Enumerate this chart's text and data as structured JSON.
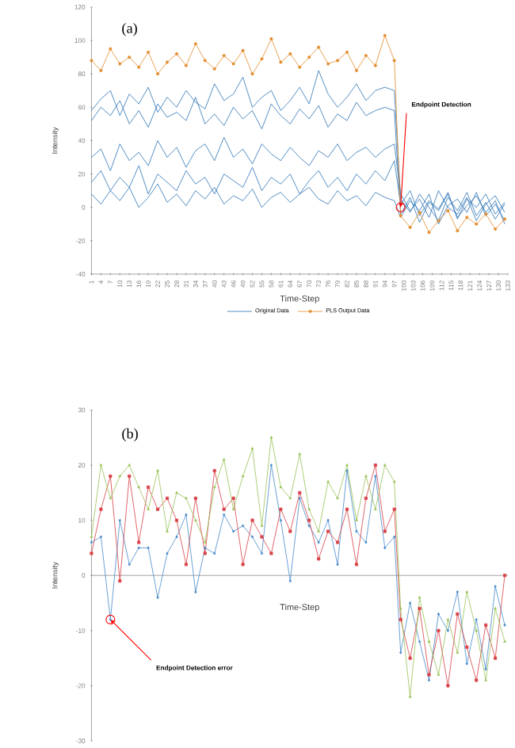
{
  "chart_data": [
    {
      "type": "line",
      "xlabel": "Time-Step",
      "ylabel": "Intensity",
      "legend": "bottom",
      "x": [
        1,
        4,
        7,
        10,
        13,
        16,
        19,
        22,
        25,
        28,
        31,
        34,
        37,
        40,
        43,
        46,
        49,
        52,
        55,
        58,
        61,
        64,
        67,
        70,
        73,
        76,
        79,
        82,
        85,
        88,
        91,
        94,
        97,
        99,
        102,
        105,
        108,
        111,
        114,
        117,
        120,
        123,
        126,
        129,
        132
      ],
      "xlim": [
        1,
        133
      ],
      "ylim": [
        -40,
        120
      ],
      "yticks": [
        -40,
        -20,
        0,
        20,
        40,
        60,
        80,
        100,
        120
      ],
      "xticks": [
        1,
        4,
        7,
        10,
        13,
        16,
        19,
        22,
        25,
        28,
        31,
        34,
        37,
        40,
        43,
        46,
        49,
        52,
        55,
        58,
        61,
        64,
        67,
        70,
        73,
        76,
        79,
        82,
        85,
        88,
        91,
        94,
        97,
        100,
        103,
        106,
        109,
        112,
        115,
        118,
        121,
        124,
        127,
        130,
        133
      ],
      "annotations": [
        "(a)",
        {
          "text": "Endpoint Detection",
          "x": 99,
          "y": 0
        }
      ],
      "series": [
        {
          "name": "Original Data",
          "color": "#2e75b6",
          "values": [
            58,
            65,
            70,
            55,
            68,
            62,
            72,
            57,
            66,
            60,
            70,
            63,
            59,
            74,
            64,
            68,
            78,
            60,
            66,
            70,
            58,
            64,
            72,
            62,
            82,
            68,
            60,
            66,
            74,
            64,
            70,
            72,
            70,
            5,
            -3,
            8,
            0,
            -8,
            6,
            -2,
            9,
            -5,
            3,
            -7,
            2
          ]
        },
        {
          "color": "#2e75b6",
          "values": [
            52,
            60,
            55,
            64,
            50,
            58,
            48,
            62,
            54,
            57,
            52,
            66,
            50,
            56,
            49,
            60,
            53,
            58,
            47,
            62,
            55,
            50,
            59,
            53,
            61,
            48,
            56,
            52,
            63,
            55,
            58,
            60,
            58,
            -4,
            6,
            -9,
            3,
            -2,
            8,
            -6,
            1,
            7,
            -3,
            4,
            -10
          ]
        },
        {
          "color": "#2e75b6",
          "values": [
            30,
            35,
            22,
            38,
            28,
            33,
            25,
            40,
            30,
            36,
            24,
            34,
            38,
            28,
            42,
            30,
            35,
            26,
            38,
            32,
            28,
            36,
            30,
            25,
            34,
            30,
            38,
            28,
            33,
            36,
            30,
            35,
            38,
            8,
            -2,
            5,
            -6,
            10,
            0,
            -4,
            6,
            -8,
            2,
            7,
            -3
          ]
        },
        {
          "color": "#2e75b6",
          "values": [
            15,
            22,
            10,
            18,
            12,
            25,
            8,
            20,
            15,
            10,
            22,
            14,
            18,
            8,
            20,
            16,
            12,
            24,
            10,
            18,
            14,
            20,
            8,
            16,
            22,
            12,
            18,
            10,
            20,
            14,
            22,
            16,
            28,
            2,
            10,
            -5,
            4,
            -1,
            9,
            -7,
            5,
            0,
            8,
            -4,
            3
          ]
        },
        {
          "color": "#2e75b6",
          "values": [
            8,
            2,
            10,
            4,
            12,
            0,
            6,
            14,
            3,
            8,
            1,
            10,
            5,
            12,
            2,
            7,
            4,
            11,
            0,
            6,
            9,
            3,
            8,
            12,
            5,
            2,
            10,
            4,
            7,
            1,
            9,
            6,
            4,
            -6,
            4,
            -2,
            8,
            -10,
            1,
            5,
            -3,
            9,
            -5,
            2,
            -8
          ]
        },
        {
          "name": "PLS Output Data",
          "color": "#e38d2f",
          "marker": "circle",
          "values": [
            88,
            82,
            95,
            86,
            90,
            84,
            93,
            80,
            87,
            92,
            85,
            98,
            88,
            83,
            91,
            86,
            94,
            80,
            89,
            101,
            87,
            92,
            84,
            90,
            96,
            86,
            88,
            93,
            82,
            91,
            85,
            103,
            88,
            -5,
            -12,
            -3,
            -15,
            -8,
            -2,
            -14,
            -6,
            -10,
            -4,
            -13,
            -7
          ]
        }
      ]
    },
    {
      "type": "line",
      "xlabel": "Time-Step",
      "ylabel": "Intensity",
      "tick_labels": "y",
      "x": [
        1,
        4,
        7,
        10,
        13,
        16,
        19,
        22,
        25,
        28,
        31,
        34,
        37,
        40,
        43,
        46,
        49,
        52,
        55,
        58,
        61,
        64,
        67,
        70,
        73,
        76,
        79,
        82,
        85,
        88,
        91,
        94,
        97,
        99,
        102,
        105,
        108,
        111,
        114,
        117,
        120,
        123,
        126,
        129,
        132
      ],
      "xlim": [
        1,
        133
      ],
      "ylim": [
        -30,
        30
      ],
      "yticks": [
        -30,
        -20,
        -10,
        0,
        10,
        20,
        30
      ],
      "annotations": [
        "(b)",
        {
          "text": "Endpoint Detection error",
          "x": 7,
          "y": -8
        }
      ],
      "series": [
        {
          "color": "#4a8ccc",
          "marker": "diamond",
          "values": [
            6,
            7,
            -8,
            10,
            2,
            5,
            5,
            -4,
            4,
            7,
            11,
            -3,
            5,
            4,
            11,
            8,
            9,
            7,
            4,
            20,
            10,
            -1,
            14,
            9,
            6,
            10,
            2,
            19,
            8,
            6,
            18,
            5,
            7,
            -14,
            -5,
            -12,
            -19,
            -7,
            -10,
            -3,
            -16,
            -8,
            -17,
            -2,
            -9
          ]
        },
        {
          "color": "#d9444a",
          "marker": "square",
          "values": [
            4,
            12,
            18,
            -1,
            18,
            6,
            16,
            12,
            14,
            10,
            2,
            14,
            4,
            19,
            12,
            14,
            2,
            10,
            7,
            4,
            12,
            8,
            15,
            10,
            3,
            8,
            6,
            12,
            2,
            14,
            20,
            8,
            12,
            -8,
            -15,
            -6,
            -18,
            -10,
            -20,
            -7,
            -13,
            -19,
            -9,
            -15,
            0
          ]
        },
        {
          "color": "#9bc35a",
          "marker": "triangle",
          "values": [
            7,
            20,
            14,
            18,
            20,
            16,
            12,
            19,
            8,
            15,
            14,
            10,
            6,
            16,
            21,
            12,
            18,
            23,
            9,
            25,
            16,
            14,
            22,
            12,
            8,
            17,
            14,
            20,
            10,
            18,
            12,
            20,
            17,
            -6,
            -22,
            -4,
            -12,
            -18,
            -8,
            -14,
            -3,
            -10,
            -19,
            -6,
            -12
          ]
        }
      ]
    }
  ]
}
